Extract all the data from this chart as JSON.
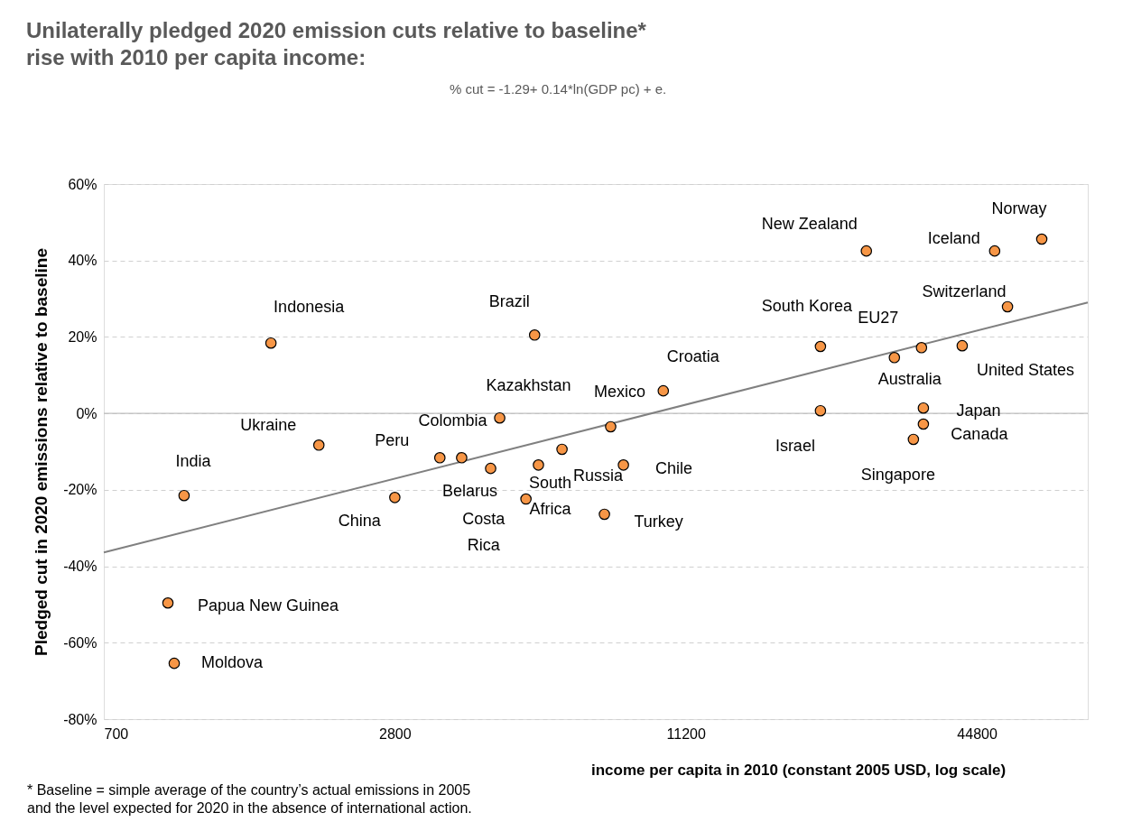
{
  "chart_data": {
    "type": "scatter",
    "title": "Unilaterally pledged 2020 emission cuts relative to baseline*\nrise with 2010 per capita income:",
    "subtitle": "% cut = -1.29+ 0.14*ln(GDP pc) + e.",
    "xlabel": "income per capita in 2010 (constant 2005 USD, log scale)",
    "ylabel": "Pledged cut in 2020 emissions relative to baseline",
    "log": "x",
    "grid": "y",
    "xlim": [
      700,
      76000
    ],
    "xticks": [
      700,
      2800,
      11200,
      44800
    ],
    "ylim": [
      -80,
      60
    ],
    "yticks": [
      {
        "value": -80,
        "label": "-80%"
      },
      {
        "value": -60,
        "label": "-60%"
      },
      {
        "value": -40,
        "label": "-40%"
      },
      {
        "value": -20,
        "label": "-20%"
      },
      {
        "value": 0,
        "label": "0%"
      },
      {
        "value": 20,
        "label": "20%"
      },
      {
        "value": 40,
        "label": "40%"
      },
      {
        "value": 60,
        "label": "60%"
      }
    ],
    "ref_lines": [
      {
        "axis": "y",
        "value": 0,
        "color": "#bfbfbf",
        "line_style": "solid"
      }
    ],
    "series": [
      {
        "marker": "circle",
        "color": "#f79646",
        "x": [
          1026,
          950,
          979,
          1552,
          1950,
          2800,
          3470,
          3850,
          4420,
          4615,
          5230,
          5450,
          5550,
          6210,
          7600,
          8320,
          7830,
          10060,
          21270,
          21270,
          26470,
          30250,
          34420,
          34730,
          34730,
          33120,
          41790,
          48770,
          51850,
          61040
        ],
        "values": [
          -21.5,
          -49.6,
          -65.4,
          18.4,
          -8.3,
          -22,
          -11.6,
          -11.6,
          -14.4,
          -1.2,
          -22.4,
          20.5,
          -13.5,
          -9.4,
          -26.4,
          -13.5,
          -3.5,
          5.9,
          0.7,
          17.5,
          42.5,
          14.6,
          17.2,
          1.4,
          -2.8,
          -6.8,
          17.7,
          42.5,
          27.9,
          45.6
        ]
      },
      {
        "type": "line",
        "color": "#808080",
        "x": [
          700,
          76000
        ],
        "values": [
          -36.4,
          29.0
        ]
      }
    ],
    "annotations": [
      {
        "text": "India",
        "x": 1026,
        "y": -21.5
      },
      {
        "text": "Papua New Guinea",
        "x": 950,
        "y": -49.6
      },
      {
        "text": "Moldova",
        "x": 979,
        "y": -65.4
      },
      {
        "text": "Indonesia",
        "x": 1552,
        "y": 18.4
      },
      {
        "text": "Ukraine",
        "x": 1950,
        "y": -8.3
      },
      {
        "text": "China",
        "x": 2800,
        "y": -22
      },
      {
        "text": "Peru",
        "x": 3470,
        "y": -11.6
      },
      {
        "text": "Colombia",
        "x": 3850,
        "y": -11.6
      },
      {
        "text": "Belarus",
        "x": 4420,
        "y": -14.4
      },
      {
        "text": "Kazakhstan",
        "x": 4615,
        "y": -1.2
      },
      {
        "text": "Costa Rica",
        "x": 5230,
        "y": -22.4
      },
      {
        "text": "Brazil",
        "x": 5450,
        "y": 20.5
      },
      {
        "text": "South Africa",
        "x": 5550,
        "y": -13.5
      },
      {
        "text": "Russia",
        "x": 6210,
        "y": -9.4
      },
      {
        "text": "Turkey",
        "x": 7600,
        "y": -26.4
      },
      {
        "text": "Chile",
        "x": 8320,
        "y": -13.5
      },
      {
        "text": "Mexico",
        "x": 7830,
        "y": -3.5
      },
      {
        "text": "Croatia",
        "x": 10060,
        "y": 5.9
      },
      {
        "text": "Israel",
        "x": 21270,
        "y": 0.7
      },
      {
        "text": "South Korea",
        "x": 21270,
        "y": 17.5
      },
      {
        "text": "New Zealand",
        "x": 26470,
        "y": 42.5
      },
      {
        "text": "EU27",
        "x": 30250,
        "y": 14.6
      },
      {
        "text": "Australia",
        "x": 34420,
        "y": 17.2
      },
      {
        "text": "Japan",
        "x": 34730,
        "y": 1.4
      },
      {
        "text": "Canada",
        "x": 34730,
        "y": -2.8
      },
      {
        "text": "Singapore",
        "x": 33120,
        "y": -6.8
      },
      {
        "text": "United States",
        "x": 41790,
        "y": 17.7
      },
      {
        "text": "Iceland",
        "x": 48770,
        "y": 42.5
      },
      {
        "text": "Switzerland",
        "x": 51850,
        "y": 27.9
      },
      {
        "text": "Norway",
        "x": 61040,
        "y": 45.6
      },
      "* Baseline = simple average of the country’s actual emissions in 2005\n and the level expected for 2020 in the absence of international action."
    ]
  }
}
